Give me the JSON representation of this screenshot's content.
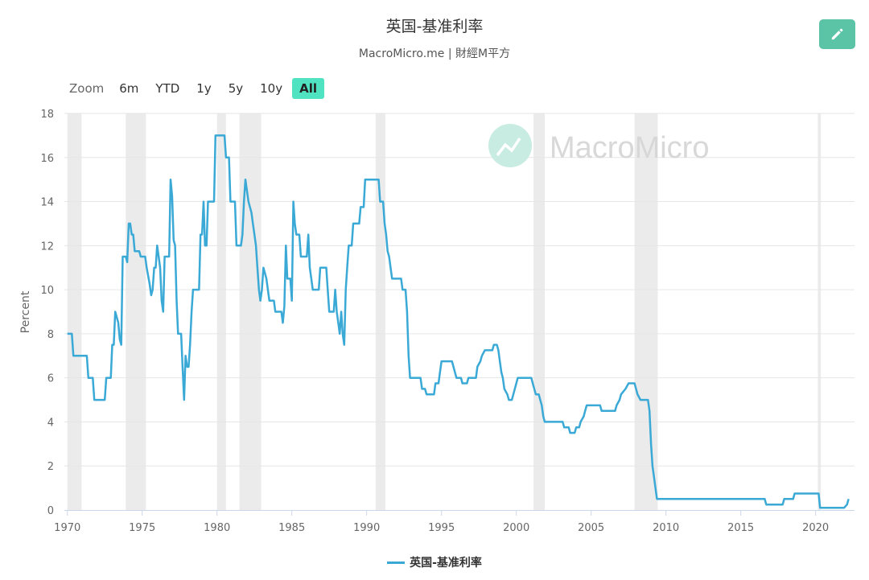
{
  "header": {
    "title": "英国-基准利率",
    "subtitle": "MacroMicro.me | 財經M平方"
  },
  "toolbar": {
    "zoom_label": "Zoom",
    "ranges": [
      "6m",
      "YTD",
      "1y",
      "5y",
      "10y",
      "All"
    ],
    "active_range": "All",
    "edit_icon": "pencil-icon"
  },
  "watermark": "MacroMicro",
  "colors": {
    "series": "#3aa9d6",
    "recession_band": "#ebebeb",
    "grid": "#e6e6e6",
    "accent": "#50e3c2",
    "edit_button": "#5cc4a6"
  },
  "chart_data": {
    "type": "line",
    "ylabel": "Percent",
    "xlim": [
      1969.8,
      2022.6
    ],
    "ylim": [
      0,
      18
    ],
    "y_ticks": [
      0,
      2,
      4,
      6,
      8,
      10,
      12,
      14,
      16,
      18
    ],
    "x_ticks": [
      1970,
      1975,
      1980,
      1985,
      1990,
      1995,
      2000,
      2005,
      2010,
      2015,
      2020
    ],
    "grid": true,
    "legend_position": "bottom-center",
    "recession_periods": [
      [
        1970.0,
        1970.95
      ],
      [
        1973.9,
        1975.25
      ],
      [
        1980.0,
        1980.6
      ],
      [
        1981.5,
        1982.95
      ],
      [
        1990.6,
        1991.25
      ],
      [
        2001.15,
        2001.9
      ],
      [
        2007.9,
        2009.45
      ],
      [
        2020.15,
        2020.35
      ]
    ],
    "series": [
      {
        "name": "英国-基准利率",
        "points": [
          [
            1970.0,
            8.0
          ],
          [
            1970.3,
            8.0
          ],
          [
            1970.4,
            7.0
          ],
          [
            1971.3,
            7.0
          ],
          [
            1971.4,
            6.0
          ],
          [
            1971.7,
            6.0
          ],
          [
            1971.8,
            5.0
          ],
          [
            1972.5,
            5.0
          ],
          [
            1972.6,
            6.0
          ],
          [
            1972.9,
            6.0
          ],
          [
            1973.0,
            7.5
          ],
          [
            1973.1,
            7.5
          ],
          [
            1973.2,
            9.0
          ],
          [
            1973.3,
            8.75
          ],
          [
            1973.4,
            8.5
          ],
          [
            1973.5,
            7.75
          ],
          [
            1973.6,
            7.5
          ],
          [
            1973.7,
            11.5
          ],
          [
            1973.9,
            11.5
          ],
          [
            1974.0,
            11.25
          ],
          [
            1974.1,
            13.0
          ],
          [
            1974.2,
            13.0
          ],
          [
            1974.3,
            12.5
          ],
          [
            1974.4,
            12.5
          ],
          [
            1974.5,
            11.75
          ],
          [
            1974.8,
            11.75
          ],
          [
            1974.9,
            11.5
          ],
          [
            1975.2,
            11.5
          ],
          [
            1975.3,
            11.0
          ],
          [
            1975.5,
            10.25
          ],
          [
            1975.6,
            9.75
          ],
          [
            1975.7,
            10.0
          ],
          [
            1975.8,
            11.0
          ],
          [
            1975.9,
            11.0
          ],
          [
            1976.0,
            12.0
          ],
          [
            1976.1,
            11.5
          ],
          [
            1976.2,
            11.0
          ],
          [
            1976.3,
            9.5
          ],
          [
            1976.4,
            9.0
          ],
          [
            1976.5,
            11.5
          ],
          [
            1976.8,
            11.5
          ],
          [
            1976.9,
            15.0
          ],
          [
            1977.0,
            14.25
          ],
          [
            1977.1,
            12.25
          ],
          [
            1977.2,
            12.0
          ],
          [
            1977.3,
            9.5
          ],
          [
            1977.4,
            8.0
          ],
          [
            1977.6,
            8.0
          ],
          [
            1977.7,
            6.5
          ],
          [
            1977.8,
            5.0
          ],
          [
            1977.9,
            7.0
          ],
          [
            1978.0,
            6.5
          ],
          [
            1978.1,
            6.5
          ],
          [
            1978.2,
            7.5
          ],
          [
            1978.3,
            9.0
          ],
          [
            1978.4,
            10.0
          ],
          [
            1978.8,
            10.0
          ],
          [
            1978.9,
            12.5
          ],
          [
            1979.0,
            12.5
          ],
          [
            1979.1,
            14.0
          ],
          [
            1979.2,
            12.0
          ],
          [
            1979.3,
            12.0
          ],
          [
            1979.4,
            14.0
          ],
          [
            1979.8,
            14.0
          ],
          [
            1979.9,
            17.0
          ],
          [
            1980.5,
            17.0
          ],
          [
            1980.6,
            16.0
          ],
          [
            1980.8,
            16.0
          ],
          [
            1980.9,
            14.0
          ],
          [
            1981.2,
            14.0
          ],
          [
            1981.3,
            12.0
          ],
          [
            1981.6,
            12.0
          ],
          [
            1981.7,
            12.5
          ],
          [
            1981.8,
            14.0
          ],
          [
            1981.9,
            15.0
          ],
          [
            1982.0,
            14.5
          ],
          [
            1982.1,
            14.0
          ],
          [
            1982.3,
            13.5
          ],
          [
            1982.4,
            13.0
          ],
          [
            1982.6,
            12.0
          ],
          [
            1982.7,
            11.0
          ],
          [
            1982.8,
            10.0
          ],
          [
            1982.9,
            9.5
          ],
          [
            1983.0,
            10.0
          ],
          [
            1983.1,
            11.0
          ],
          [
            1983.3,
            10.5
          ],
          [
            1983.4,
            10.0
          ],
          [
            1983.5,
            9.5
          ],
          [
            1983.8,
            9.5
          ],
          [
            1983.9,
            9.0
          ],
          [
            1984.3,
            9.0
          ],
          [
            1984.4,
            8.5
          ],
          [
            1984.5,
            9.25
          ],
          [
            1984.6,
            12.0
          ],
          [
            1984.7,
            10.5
          ],
          [
            1984.9,
            10.5
          ],
          [
            1985.0,
            9.5
          ],
          [
            1985.1,
            14.0
          ],
          [
            1985.2,
            13.0
          ],
          [
            1985.3,
            12.5
          ],
          [
            1985.5,
            12.5
          ],
          [
            1985.6,
            11.5
          ],
          [
            1986.0,
            11.5
          ],
          [
            1986.1,
            12.5
          ],
          [
            1986.2,
            11.0
          ],
          [
            1986.3,
            10.5
          ],
          [
            1986.4,
            10.0
          ],
          [
            1986.8,
            10.0
          ],
          [
            1986.9,
            11.0
          ],
          [
            1987.3,
            11.0
          ],
          [
            1987.4,
            10.0
          ],
          [
            1987.5,
            9.0
          ],
          [
            1987.8,
            9.0
          ],
          [
            1987.9,
            10.0
          ],
          [
            1988.0,
            9.0
          ],
          [
            1988.1,
            8.5
          ],
          [
            1988.2,
            8.0
          ],
          [
            1988.3,
            9.0
          ],
          [
            1988.4,
            8.0
          ],
          [
            1988.5,
            7.5
          ],
          [
            1988.6,
            10.0
          ],
          [
            1988.7,
            11.0
          ],
          [
            1988.8,
            12.0
          ],
          [
            1989.0,
            12.0
          ],
          [
            1989.1,
            13.0
          ],
          [
            1989.5,
            13.0
          ],
          [
            1989.6,
            13.75
          ],
          [
            1989.8,
            13.75
          ],
          [
            1989.9,
            15.0
          ],
          [
            1990.8,
            15.0
          ],
          [
            1990.9,
            14.0
          ],
          [
            1991.1,
            14.0
          ],
          [
            1991.2,
            13.0
          ],
          [
            1991.3,
            12.5
          ],
          [
            1991.4,
            11.75
          ],
          [
            1991.5,
            11.5
          ],
          [
            1991.6,
            11.0
          ],
          [
            1991.7,
            10.5
          ],
          [
            1992.3,
            10.5
          ],
          [
            1992.4,
            10.0
          ],
          [
            1992.6,
            10.0
          ],
          [
            1992.7,
            9.0
          ],
          [
            1992.8,
            7.0
          ],
          [
            1992.9,
            6.0
          ],
          [
            1993.6,
            6.0
          ],
          [
            1993.7,
            5.5
          ],
          [
            1993.9,
            5.5
          ],
          [
            1994.0,
            5.25
          ],
          [
            1994.5,
            5.25
          ],
          [
            1994.6,
            5.75
          ],
          [
            1994.8,
            5.75
          ],
          [
            1994.9,
            6.25
          ],
          [
            1995.0,
            6.75
          ],
          [
            1995.7,
            6.75
          ],
          [
            1995.8,
            6.5
          ],
          [
            1995.9,
            6.25
          ],
          [
            1996.0,
            6.0
          ],
          [
            1996.3,
            6.0
          ],
          [
            1996.4,
            5.75
          ],
          [
            1996.7,
            5.75
          ],
          [
            1996.8,
            6.0
          ],
          [
            1997.3,
            6.0
          ],
          [
            1997.4,
            6.5
          ],
          [
            1997.6,
            6.75
          ],
          [
            1997.7,
            7.0
          ],
          [
            1997.9,
            7.25
          ],
          [
            1998.4,
            7.25
          ],
          [
            1998.5,
            7.5
          ],
          [
            1998.7,
            7.5
          ],
          [
            1998.8,
            7.25
          ],
          [
            1998.9,
            6.75
          ],
          [
            1999.0,
            6.25
          ],
          [
            1999.1,
            6.0
          ],
          [
            1999.2,
            5.5
          ],
          [
            1999.4,
            5.25
          ],
          [
            1999.5,
            5.0
          ],
          [
            1999.7,
            5.0
          ],
          [
            1999.8,
            5.25
          ],
          [
            1999.9,
            5.5
          ],
          [
            2000.0,
            5.75
          ],
          [
            2000.1,
            6.0
          ],
          [
            2001.0,
            6.0
          ],
          [
            2001.1,
            5.75
          ],
          [
            2001.2,
            5.5
          ],
          [
            2001.3,
            5.25
          ],
          [
            2001.5,
            5.25
          ],
          [
            2001.6,
            5.0
          ],
          [
            2001.7,
            4.75
          ],
          [
            2001.8,
            4.25
          ],
          [
            2001.9,
            4.0
          ],
          [
            2003.1,
            4.0
          ],
          [
            2003.2,
            3.75
          ],
          [
            2003.5,
            3.75
          ],
          [
            2003.6,
            3.5
          ],
          [
            2003.9,
            3.5
          ],
          [
            2004.0,
            3.75
          ],
          [
            2004.2,
            3.75
          ],
          [
            2004.3,
            4.0
          ],
          [
            2004.5,
            4.25
          ],
          [
            2004.6,
            4.5
          ],
          [
            2004.7,
            4.75
          ],
          [
            2005.6,
            4.75
          ],
          [
            2005.7,
            4.5
          ],
          [
            2006.6,
            4.5
          ],
          [
            2006.7,
            4.75
          ],
          [
            2006.9,
            5.0
          ],
          [
            2007.0,
            5.25
          ],
          [
            2007.3,
            5.5
          ],
          [
            2007.5,
            5.75
          ],
          [
            2007.9,
            5.75
          ],
          [
            2008.0,
            5.5
          ],
          [
            2008.1,
            5.25
          ],
          [
            2008.3,
            5.0
          ],
          [
            2008.8,
            5.0
          ],
          [
            2008.9,
            4.5
          ],
          [
            2009.0,
            3.0
          ],
          [
            2009.1,
            2.0
          ],
          [
            2009.2,
            1.5
          ],
          [
            2009.3,
            1.0
          ],
          [
            2009.4,
            0.5
          ],
          [
            2016.6,
            0.5
          ],
          [
            2016.7,
            0.25
          ],
          [
            2017.8,
            0.25
          ],
          [
            2017.9,
            0.5
          ],
          [
            2018.5,
            0.5
          ],
          [
            2018.6,
            0.75
          ],
          [
            2020.2,
            0.75
          ],
          [
            2020.3,
            0.1
          ],
          [
            2021.9,
            0.1
          ],
          [
            2022.1,
            0.25
          ],
          [
            2022.2,
            0.5
          ]
        ]
      }
    ]
  }
}
